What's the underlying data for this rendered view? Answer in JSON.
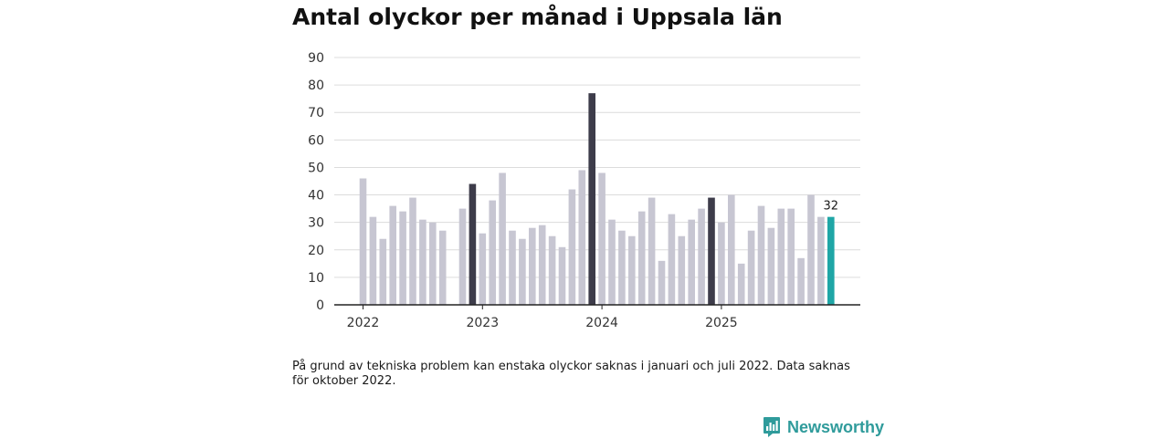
{
  "title": "Antal olyckor per månad i Uppsala län",
  "note": "På grund av tekniska problem kan enstaka olyckor saknas i januari och juli 2022. Data saknas för oktober 2022.",
  "brand": {
    "name": "Newsworthy",
    "icon": "newsworthy-logo-icon"
  },
  "colors": {
    "bar": "#c7c6d2",
    "highlight": "#3d3c4a",
    "latest": "#1fa6a6",
    "grid": "#dcdcdc",
    "axis": "#222222"
  },
  "chart_data": {
    "type": "bar",
    "title": "Antal olyckor per månad i Uppsala län",
    "xlabel": "",
    "ylabel": "",
    "ylim": [
      0,
      90
    ],
    "yticks": [
      0,
      10,
      20,
      30,
      40,
      50,
      60,
      70,
      80,
      90
    ],
    "grid": true,
    "year_labels": [
      {
        "label": "2022",
        "month_index": 0
      },
      {
        "label": "2023",
        "month_index": 12
      },
      {
        "label": "2024",
        "month_index": 24
      },
      {
        "label": "2025",
        "month_index": 36
      }
    ],
    "months": [
      "2022-01",
      "2022-02",
      "2022-03",
      "2022-04",
      "2022-05",
      "2022-06",
      "2022-07",
      "2022-08",
      "2022-09",
      "2022-10",
      "2022-11",
      "2022-12",
      "2023-01",
      "2023-02",
      "2023-03",
      "2023-04",
      "2023-05",
      "2023-06",
      "2023-07",
      "2023-08",
      "2023-09",
      "2023-10",
      "2023-11",
      "2023-12",
      "2024-01",
      "2024-02",
      "2024-03",
      "2024-04",
      "2024-05",
      "2024-06",
      "2024-07",
      "2024-08",
      "2024-09",
      "2024-10",
      "2024-11",
      "2024-12",
      "2025-01",
      "2025-02",
      "2025-03",
      "2025-04",
      "2025-05",
      "2025-06",
      "2025-07",
      "2025-08",
      "2025-09",
      "2025-10",
      "2025-11",
      "2025-12"
    ],
    "values": [
      46,
      32,
      24,
      36,
      34,
      39,
      31,
      30,
      27,
      null,
      35,
      44,
      26,
      38,
      48,
      27,
      24,
      28,
      29,
      25,
      21,
      42,
      49,
      77,
      48,
      31,
      27,
      25,
      34,
      39,
      16,
      33,
      25,
      31,
      35,
      39,
      30,
      40,
      15,
      27,
      36,
      28,
      35,
      35,
      17,
      40,
      32,
      32
    ],
    "highlight_indices": [
      11,
      23,
      35
    ],
    "latest_index": 47,
    "data_labels": [
      {
        "index": 47,
        "text": "32"
      }
    ]
  }
}
